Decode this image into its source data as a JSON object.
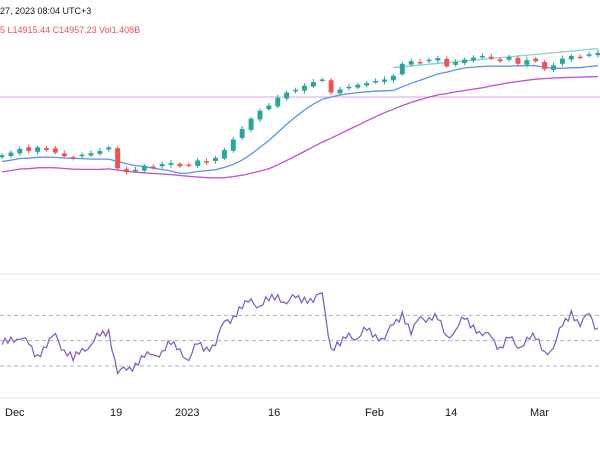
{
  "header": {
    "line1": "27, 2023 08:04 UTC+3",
    "low": "L14915.44",
    "close": "C14957.23",
    "vol": "Vol1.408B",
    "prefix": "5"
  },
  "colors": {
    "up": "#26a69a",
    "down": "#ef5350",
    "ma_fast": "#5b8ff9",
    "ma_slow": "#c04fd4",
    "trendline": "#7fd3c7",
    "rsi": "#7e57c2",
    "level_line": "#d7a6e3",
    "rsi_band": "#b0b3bd"
  },
  "chart_data": [
    {
      "type": "candlestick",
      "title": "",
      "series": [
        {
          "name": "",
          "role": "ohlc"
        },
        {
          "name": "",
          "role": "moving-average-fast"
        },
        {
          "name": "",
          "role": "moving-average-slow"
        }
      ],
      "price": [
        13000,
        13050,
        13120,
        13080,
        13150,
        13100,
        13050,
        12980,
        12950,
        13010,
        13040,
        13080,
        13150,
        12750,
        12680,
        12720,
        12800,
        12760,
        12830,
        12850,
        12790,
        12810,
        12900,
        12860,
        12950,
        13100,
        13300,
        13500,
        13700,
        13850,
        13950,
        14100,
        14200,
        14250,
        14330,
        14400,
        14450,
        14200,
        14260,
        14310,
        14350,
        14380,
        14420,
        14450,
        14520,
        14750,
        14800,
        14780,
        14830,
        14860,
        14700,
        14780,
        14830,
        14870,
        14900,
        14850,
        14800,
        14880,
        14750,
        14820,
        14800,
        14650,
        14720,
        14850,
        14900,
        14880,
        14930,
        14960
      ],
      "x_ticks": [
        "Dec",
        "19",
        "2023",
        "16",
        "Feb",
        "14",
        "Mar"
      ],
      "trendline": "resistance line across the highs from early February to the end",
      "level_line": "horizontal level line"
    },
    {
      "type": "line",
      "title": "",
      "series": [
        {
          "name": "",
          "role": "oscillator"
        }
      ],
      "values": [
        47,
        50,
        55,
        45,
        38,
        48,
        52,
        44,
        36,
        40,
        50,
        53,
        56,
        28,
        24,
        32,
        40,
        35,
        44,
        48,
        40,
        38,
        46,
        43,
        50,
        62,
        70,
        78,
        79,
        80,
        82,
        83,
        83,
        82,
        83,
        84,
        84,
        45,
        48,
        52,
        55,
        58,
        52,
        55,
        60,
        72,
        58,
        65,
        70,
        68,
        50,
        62,
        66,
        60,
        58,
        50,
        45,
        55,
        40,
        55,
        52,
        38,
        48,
        60,
        72,
        65,
        68,
        60
      ],
      "bands": [
        70,
        50,
        30
      ],
      "x_ticks": [
        "Dec",
        "19",
        "2023",
        "16",
        "Feb",
        "14",
        "Mar"
      ]
    }
  ]
}
